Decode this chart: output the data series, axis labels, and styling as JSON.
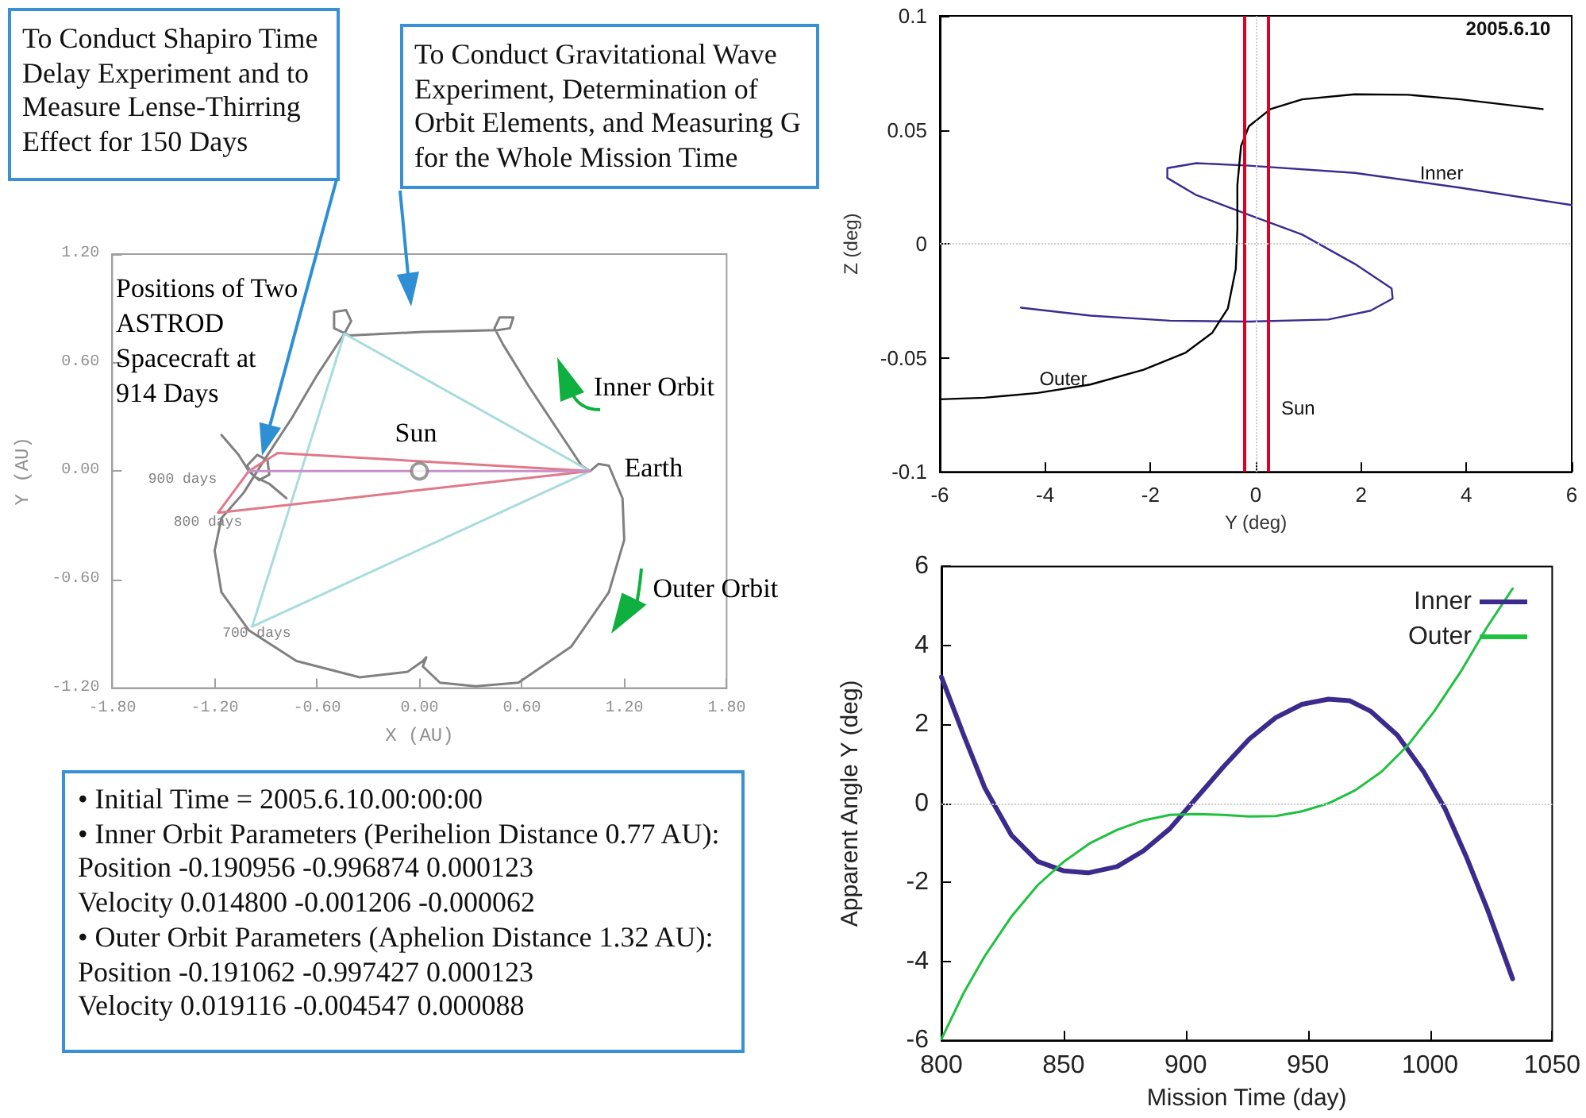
{
  "chart_data": [
    {
      "type": "line",
      "xlabel": "X (AU)",
      "ylabel": "Y (AU)",
      "xlim": [
        -1.8,
        1.8
      ],
      "ylim": [
        -1.2,
        1.2
      ],
      "xticks": [
        {
          "value": -1.8,
          "label": "-1.80"
        },
        {
          "value": -1.2,
          "label": "-1.20"
        },
        {
          "value": -0.6,
          "label": "-0.60"
        },
        {
          "value": 0,
          "label": "0.00"
        },
        {
          "value": 0.6,
          "label": "0.60"
        },
        {
          "value": 1.2,
          "label": "1.20"
        },
        {
          "value": 1.8,
          "label": "1.80"
        }
      ],
      "yticks": [
        {
          "value": -1.2,
          "label": "-1.20"
        },
        {
          "value": -0.6,
          "label": "-0.60"
        },
        {
          "value": 0,
          "label": "0.00"
        },
        {
          "value": 0.6,
          "label": "0.60"
        },
        {
          "value": 1.2,
          "label": "1.20"
        }
      ],
      "marker": "none",
      "series": [
        {
          "color": "#808080",
          "x": [
            -0.44,
            -0.6,
            -0.75,
            -0.91,
            -1.03,
            -1.16,
            -1.2,
            null,
            -1.2,
            -1.16,
            -1.0,
            -0.72,
            -0.35,
            -0.07,
            0.02,
            0.04,
            null,
            0.04,
            0.02,
            null,
            0.02,
            0.12,
            0.33,
            0.58,
            0.89,
            1.11,
            1.2,
            null,
            1.2,
            1.19,
            1.11,
            1.05,
            1.0,
            0.95,
            0.83,
            0.64,
            0.49,
            0.44,
            null,
            0.44,
            0.47,
            0.55,
            null,
            0.55,
            0.53,
            0.46,
            0.02,
            -0.41,
            -0.5,
            -0.5,
            null,
            -0.5,
            -0.43,
            -0.4,
            null,
            -0.4,
            -0.44
          ],
          "values": [
            0.76,
            0.53,
            0.29,
            0.06,
            -0.12,
            -0.26,
            -0.44,
            null,
            -0.44,
            -0.67,
            -0.88,
            -1.05,
            -1.14,
            -1.11,
            -1.05,
            -1.03,
            null,
            -1.03,
            -1.08,
            null,
            -1.08,
            -1.17,
            -1.19,
            -1.17,
            -0.97,
            -0.67,
            -0.38,
            null,
            -0.38,
            -0.15,
            0.03,
            0.04,
            0.0,
            0.03,
            0.2,
            0.47,
            0.7,
            0.79,
            null,
            0.79,
            0.85,
            0.85,
            null,
            0.85,
            0.79,
            0.78,
            0.77,
            0.75,
            0.79,
            0.88,
            null,
            0.88,
            0.89,
            0.83,
            null,
            0.83,
            0.76
          ]
        },
        {
          "color": "#808080",
          "x": [
            -1.16,
            -1.06,
            -1.0,
            -0.94,
            -0.88,
            null,
            -0.88,
            -0.89,
            -0.95,
            -1.01,
            null,
            -1.01,
            -0.97,
            -0.88,
            -0.78
          ],
          "values": [
            0.2,
            0.09,
            0.0,
            -0.05,
            -0.02,
            null,
            -0.02,
            0.06,
            0.09,
            0.03,
            null,
            0.03,
            -0.03,
            -0.07,
            -0.15
          ]
        },
        {
          "color": "#a8dcdc",
          "x": [
            -0.44,
            1.0,
            null,
            -0.98,
            -0.44,
            null,
            -0.98,
            1.0
          ],
          "values": [
            0.76,
            0.0,
            null,
            -0.86,
            0.76,
            null,
            -0.86,
            0.0
          ]
        },
        {
          "color": "#e07888",
          "x": [
            -0.83,
            1.0,
            null,
            -1.0,
            -0.83,
            null,
            -1.18,
            -1.0,
            null,
            -1.18,
            1.0
          ],
          "values": [
            0.1,
            0.0,
            null,
            0.0,
            0.1,
            null,
            -0.23,
            0.0,
            null,
            -0.23,
            0.0
          ]
        },
        {
          "color": "#c890c8",
          "x": [
            -1.0,
            1.0
          ],
          "values": [
            0.0,
            0.0
          ]
        },
        {
          "type": "scatter",
          "marker": "circle",
          "color": "#808080",
          "x": [
            0
          ],
          "values": [
            0
          ]
        }
      ],
      "annotations": [
        "To Conduct Shapiro Time Delay Experiment and to Measure Lense-Thirring Effect for 150 Days",
        "To Conduct Gravitational Wave Experiment, Determination of Orbit Elements, and Measuring G for the Whole Mission Time",
        "Positions of Two ASTROD Spacecraft at 914 Days",
        "Sun",
        "Earth",
        "Inner Orbit",
        "Outer Orbit",
        "900 days",
        "800 days",
        "700 days"
      ]
    },
    {
      "type": "line",
      "xlabel": "Y (deg)",
      "ylabel": "Z (deg)",
      "xlim": [
        -6,
        6
      ],
      "ylim": [
        -0.1,
        0.1
      ],
      "xticks": [
        -6,
        -4,
        -2,
        0,
        2,
        4,
        6
      ],
      "yticks": [
        -0.1,
        -0.05,
        0,
        0.05,
        0.1
      ],
      "marker": "none",
      "series": [
        {
          "name": "Inner",
          "color": "#3c2a90",
          "x": [
            -4.46,
            -3.14,
            -1.63,
            -0.13,
            1.38,
            2.18,
            2.6,
            2.58,
            1.88,
            0.88,
            -0.13,
            -1.13,
            -1.68,
            -1.68,
            -1.13,
            -0.13,
            1.88,
            3.89,
            6.0
          ],
          "values": [
            -0.028,
            -0.0315,
            -0.0337,
            -0.0341,
            -0.0332,
            -0.0293,
            -0.024,
            -0.0196,
            -0.0088,
            0.0041,
            0.0127,
            0.0214,
            0.0289,
            0.0332,
            0.0354,
            0.0343,
            0.0311,
            0.0246,
            0.017
          ]
        },
        {
          "name": "Outer",
          "color": "#000000",
          "x": [
            -6.0,
            -5.15,
            -4.14,
            -3.14,
            -2.13,
            -1.33,
            -0.83,
            -0.53,
            -0.38,
            -0.35,
            -0.35,
            -0.28,
            -0.13,
            0.28,
            0.88,
            1.88,
            2.89,
            3.89,
            5.45
          ],
          "values": [
            -0.0682,
            -0.0675,
            -0.0654,
            -0.0617,
            -0.0552,
            -0.0477,
            -0.0391,
            -0.0283,
            -0.011,
            0.0063,
            0.0257,
            0.0429,
            0.0516,
            0.0591,
            0.0634,
            0.0656,
            0.0654,
            0.0634,
            0.0591
          ]
        }
      ],
      "ref_lines": [
        {
          "axis": "x",
          "value": -0.23,
          "color": "#e00020"
        },
        {
          "axis": "x",
          "value": 0.24,
          "label": "Sun",
          "color": "#e00020"
        },
        {
          "axis": "x",
          "value": 0,
          "color": "#cccccc",
          "line_style": "dotted"
        },
        {
          "axis": "y",
          "value": 0,
          "color": "#cccccc",
          "line_style": "dotted"
        }
      ],
      "annotations": [
        "2005.6.10"
      ]
    },
    {
      "type": "line",
      "xlabel": "Mission Time (day)",
      "ylabel": "Apparent Angle Y (deg)",
      "xlim": [
        800,
        1050
      ],
      "ylim": [
        -6,
        6
      ],
      "xticks": [
        800,
        850,
        900,
        950,
        1000,
        1050
      ],
      "yticks": [
        -6,
        -4,
        -2,
        0,
        2,
        4,
        6
      ],
      "marker": "none",
      "legend": "top right",
      "series": [
        {
          "name": "Inner",
          "color": "#3c2a8c",
          "x": [
            800,
            809.1,
            817.7,
            828.6,
            839.4,
            850.2,
            860,
            871.9,
            882.7,
            893.5,
            904.3,
            915.2,
            926,
            936.8,
            947.6,
            958.4,
            967.1,
            975.8,
            986.6,
            997.4,
            1006.1,
            1014.7,
            1023.4,
            1033.8
          ],
          "values": [
            3.2,
            1.73,
            0.4,
            -0.8,
            -1.47,
            -1.71,
            -1.76,
            -1.6,
            -1.2,
            -0.64,
            0.13,
            0.91,
            1.63,
            2.17,
            2.51,
            2.64,
            2.6,
            2.33,
            1.73,
            0.8,
            -0.13,
            -1.33,
            -2.67,
            -4.44
          ]
        },
        {
          "name": "Outer",
          "color": "#20c040",
          "x": [
            800,
            809.1,
            817.7,
            828.6,
            839.4,
            850.2,
            861,
            871.9,
            882.7,
            893.5,
            904.3,
            915.2,
            926,
            936.8,
            947.6,
            958.4,
            969.3,
            980.1,
            990.9,
            1001.7,
            1012.5,
            1023.4,
            1033.8
          ],
          "values": [
            -5.97,
            -4.8,
            -3.87,
            -2.87,
            -2.07,
            -1.47,
            -1,
            -0.67,
            -0.43,
            -0.29,
            -0.27,
            -0.29,
            -0.33,
            -0.32,
            -0.2,
            0,
            0.33,
            0.8,
            1.47,
            2.33,
            3.33,
            4.47,
            5.44
          ]
        }
      ],
      "ref_lines": [
        {
          "axis": "y",
          "value": 0,
          "color": "#cccccc",
          "line_style": "dotted"
        }
      ]
    },
    {
      "type": "other",
      "annotations": [
        "• Initial Time = 2005.6.10.00:00:00",
        "• Inner Orbit Parameters (Perihelion Distance 0.77 AU):",
        "Position -0.190956 -0.996874 0.000123",
        "Velocity 0.014800 -0.001206 -0.000062",
        "• Outer Orbit Parameters (Aphelion Distance 1.32 AU):",
        "Position -0.191062 -0.997427 0.000123",
        "Velocity 0.019116 -0.004547 0.000088"
      ]
    }
  ]
}
